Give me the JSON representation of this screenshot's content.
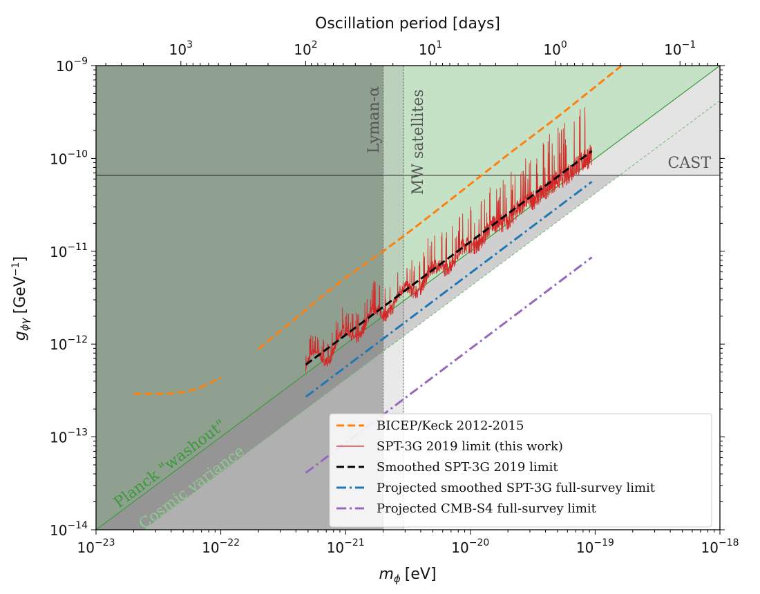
{
  "chart_data": {
    "type": "line",
    "x_axis": {
      "label": "m_ϕ [eV]",
      "label_base": "m",
      "label_sub": "ϕ",
      "label_unit": "[eV]",
      "scale": "log",
      "range": [
        1e-23,
        1e-18
      ],
      "tick_labels": [
        {
          "value": 1e-23,
          "base": "10",
          "exp": "−23"
        },
        {
          "value": 1e-22,
          "base": "10",
          "exp": "−22"
        },
        {
          "value": 1e-21,
          "base": "10",
          "exp": "−21"
        },
        {
          "value": 1e-20,
          "base": "10",
          "exp": "−20"
        },
        {
          "value": 1e-19,
          "base": "10",
          "exp": "−19"
        },
        {
          "value": 1e-18,
          "base": "10",
          "exp": "−18"
        }
      ]
    },
    "y_axis": {
      "label": "g_ϕγ [GeV⁻¹]",
      "label_base": "g",
      "label_sub": "ϕγ",
      "label_unit_pre": "[GeV",
      "label_unit_exp": "−1",
      "label_unit_post": "]",
      "scale": "log",
      "range": [
        1e-14,
        1e-09
      ],
      "tick_labels": [
        {
          "value": 1e-14,
          "base": "10",
          "exp": "−14"
        },
        {
          "value": 1e-13,
          "base": "10",
          "exp": "−13"
        },
        {
          "value": 1e-12,
          "base": "10",
          "exp": "−12"
        },
        {
          "value": 1e-11,
          "base": "10",
          "exp": "−11"
        },
        {
          "value": 1e-10,
          "base": "10",
          "exp": "−10"
        },
        {
          "value": 1e-09,
          "base": "10",
          "exp": "−9"
        }
      ]
    },
    "top_axis": {
      "label": "Oscillation period [days]",
      "scale": "log",
      "tick_labels": [
        {
          "value": 1000,
          "base": "10",
          "exp": "3"
        },
        {
          "value": 100,
          "base": "10",
          "exp": "2"
        },
        {
          "value": 10,
          "base": "10",
          "exp": "1"
        },
        {
          "value": 1,
          "base": "10",
          "exp": "0"
        },
        {
          "value": 0.1,
          "base": "10",
          "exp": "−1"
        }
      ]
    },
    "regions": [
      {
        "name": "Planck \"washout\"",
        "label": "Planck \"washout\"",
        "color": "#8fc28f",
        "description_shape": "above line g = 1e-14 at m = 1e-23 to 1e-9 at m = 1e-18"
      },
      {
        "name": "Cosmic variance",
        "label": "Cosmic variance",
        "color": "#cfcfcf"
      },
      {
        "name": "Lyman-α",
        "label": "Lyman-α",
        "m_max": 2e-21
      },
      {
        "name": "MW satellites",
        "label": "MW satellites",
        "m_max": 2.9e-21
      },
      {
        "name": "CAST",
        "label": "CAST",
        "g_min": 6.6e-11,
        "color": "#e4e4e4"
      }
    ],
    "series": [
      {
        "name": "BICEP/Keck 2012-2015",
        "color": "#ff7f0e",
        "style": "dashed",
        "segments": [
          {
            "x": [
              2e-23,
              3e-23,
              4e-23,
              5e-23,
              6e-23,
              7e-23,
              8e-23,
              9e-23,
              1e-22
            ],
            "y": [
              2.9e-13,
              2.9e-13,
              2.95e-13,
              3.05e-13,
              3.2e-13,
              3.45e-13,
              3.75e-13,
              4.05e-13,
              4.4e-13
            ]
          },
          {
            "x": [
              2e-22,
              4e-22,
              6e-22,
              1e-21,
              1.5e-21,
              2e-21,
              3e-21,
              5e-21,
              1e-20,
              2e-20,
              5e-20,
              1e-19,
              2e-19,
              4e-19,
              6e-19
            ],
            "y": [
              8.9e-13,
              1.9e-12,
              3e-12,
              5.2e-12,
              7.6e-12,
              1e-11,
              1.5e-11,
              2.55e-11,
              5.3e-11,
              1.1e-10,
              2.8e-10,
              5.9e-10,
              1.25e-09,
              2.6e-09,
              4e-09
            ]
          }
        ]
      },
      {
        "name": "SPT-3G 2019 limit (this work)",
        "color": "#d62728",
        "style": "solid-noisy",
        "x_range": [
          4.8e-22,
          9.4e-20
        ]
      },
      {
        "name": "Smoothed SPT-3G 2019 limit",
        "color": "#000000",
        "style": "dashed",
        "x": [
          4.8e-22,
          9.4e-20
        ],
        "y": [
          6e-13,
          1.2e-10
        ]
      },
      {
        "name": "Projected smoothed SPT-3G full-survey limit",
        "color": "#1f77b4",
        "style": "dashdot",
        "x": [
          4.8e-22,
          9.4e-20
        ],
        "y": [
          2.7e-13,
          5.6e-11
        ]
      },
      {
        "name": "Projected CMB-S4 full-survey limit",
        "color": "#9467bd",
        "style": "dashdot",
        "x": [
          4.8e-22,
          9.4e-20
        ],
        "y": [
          4.1e-14,
          8.6e-12
        ]
      }
    ],
    "legend": {
      "placement": "lower-right"
    },
    "grid": false
  }
}
